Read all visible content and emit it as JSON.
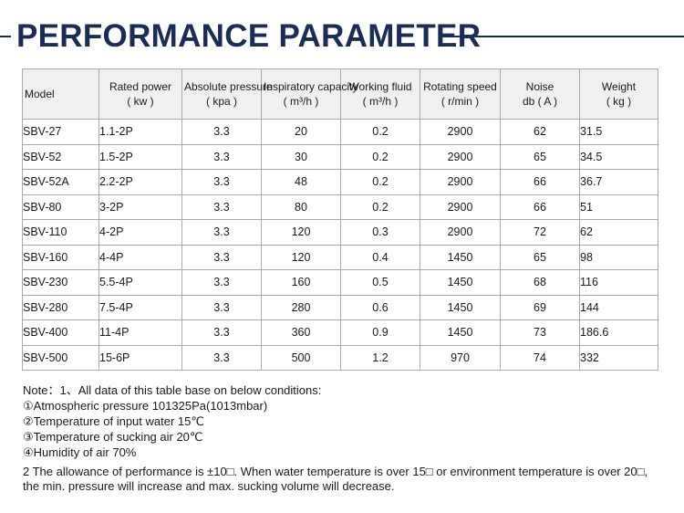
{
  "title": "PERFORMANCE PARAMETER",
  "table": {
    "headers": [
      {
        "name": "model",
        "line1": "Model",
        "unit": "",
        "align": "model"
      },
      {
        "name": "rated-power",
        "line1": "Rated power",
        "unit": "( kw )",
        "align": "c-center"
      },
      {
        "name": "absolute-pressure",
        "line1": "Absolute pressure",
        "unit": "( kpa )",
        "align": "c-center"
      },
      {
        "name": "inspiratory-capacity",
        "line1": "Inspiratory capacity",
        "unit": "( m³/h )",
        "align": "c-center"
      },
      {
        "name": "working-fluid",
        "line1": "Working fluid",
        "unit": "( m³/h )",
        "align": "c-center"
      },
      {
        "name": "rotating-speed",
        "line1": "Rotating speed",
        "unit": "( r/min )",
        "align": "c-center"
      },
      {
        "name": "noise",
        "line1": "Noise",
        "unit": "db ( A )",
        "align": "c-center"
      },
      {
        "name": "weight",
        "line1": "Weight",
        "unit": "( kg )",
        "align": "c-center"
      }
    ],
    "col_align": [
      "c-left",
      "c-left",
      "c-center",
      "c-center",
      "c-center",
      "c-center",
      "c-center",
      "c-left"
    ],
    "rows": [
      [
        "SBV-27",
        "1.1-2P",
        "3.3",
        "20",
        "0.2",
        "2900",
        "62",
        "31.5"
      ],
      [
        "SBV-52",
        "1.5-2P",
        "3.3",
        "30",
        "0.2",
        "2900",
        "65",
        "34.5"
      ],
      [
        "SBV-52A",
        "2.2-2P",
        "3.3",
        "48",
        "0.2",
        "2900",
        "66",
        "36.7"
      ],
      [
        "SBV-80",
        "3-2P",
        "3.3",
        "80",
        "0.2",
        "2900",
        "66",
        "51"
      ],
      [
        "SBV-110",
        "4-2P",
        "3.3",
        "120",
        "0.3",
        "2900",
        "72",
        "62"
      ],
      [
        "SBV-160",
        "4-4P",
        "3.3",
        "120",
        "0.4",
        "1450",
        "65",
        "98"
      ],
      [
        "SBV-230",
        "5.5-4P",
        "3.3",
        "160",
        "0.5",
        "1450",
        "68",
        "116"
      ],
      [
        "SBV-280",
        "7.5-4P",
        "3.3",
        "280",
        "0.6",
        "1450",
        "69",
        "144"
      ],
      [
        "SBV-400",
        "11-4P",
        "3.3",
        "360",
        "0.9",
        "1450",
        "73",
        "186.6"
      ],
      [
        "SBV-500",
        "15-6P",
        "3.3",
        "500",
        "1.2",
        "970",
        "74",
        "332"
      ]
    ]
  },
  "notes": {
    "lines": [
      "Note：1、All data of this table base on below conditions:",
      "①Atmospheric pressure 101325Pa(1013mbar)",
      "②Temperature of input water 15℃",
      "③Temperature of sucking air 20℃",
      "④Humidity of air 70%"
    ],
    "paragraph": "2 The allowance of performance is ±10□. When water temperature is over 15□ or environment temperature is over 20□, the min. pressure will increase and max. sucking volume will decrease."
  },
  "colors": {
    "title": "#1c2d55",
    "header_bg": "#f0f0f0",
    "border": "#a9a9a9"
  }
}
